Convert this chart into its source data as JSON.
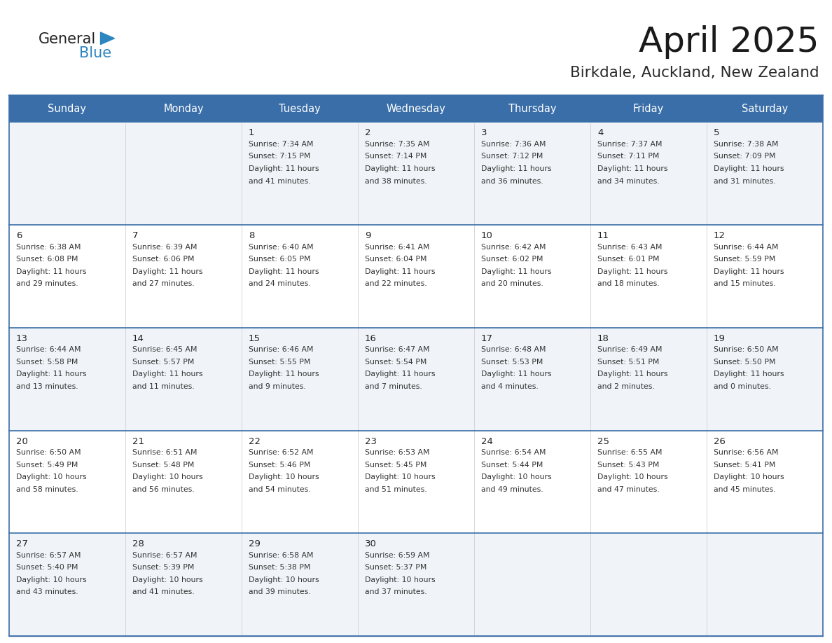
{
  "title": "April 2025",
  "subtitle": "Birkdale, Auckland, New Zealand",
  "header_bg": "#3a6ea8",
  "header_text": "#ffffff",
  "row_bg_odd": "#f0f4f8",
  "row_bg_even": "#ffffff",
  "day_number_color": "#222222",
  "cell_text_color": "#333333",
  "grid_line_color": "#3a6ea8",
  "logo_general_color": "#222222",
  "logo_blue_color": "#2e86c1",
  "logo_triangle_color": "#2e86c1",
  "days_of_week": [
    "Sunday",
    "Monday",
    "Tuesday",
    "Wednesday",
    "Thursday",
    "Friday",
    "Saturday"
  ],
  "calendar_data": [
    [
      {
        "day": "",
        "sunrise": "",
        "sunset": "",
        "daylight1": "",
        "daylight2": ""
      },
      {
        "day": "",
        "sunrise": "",
        "sunset": "",
        "daylight1": "",
        "daylight2": ""
      },
      {
        "day": "1",
        "sunrise": "Sunrise: 7:34 AM",
        "sunset": "Sunset: 7:15 PM",
        "daylight1": "Daylight: 11 hours",
        "daylight2": "and 41 minutes."
      },
      {
        "day": "2",
        "sunrise": "Sunrise: 7:35 AM",
        "sunset": "Sunset: 7:14 PM",
        "daylight1": "Daylight: 11 hours",
        "daylight2": "and 38 minutes."
      },
      {
        "day": "3",
        "sunrise": "Sunrise: 7:36 AM",
        "sunset": "Sunset: 7:12 PM",
        "daylight1": "Daylight: 11 hours",
        "daylight2": "and 36 minutes."
      },
      {
        "day": "4",
        "sunrise": "Sunrise: 7:37 AM",
        "sunset": "Sunset: 7:11 PM",
        "daylight1": "Daylight: 11 hours",
        "daylight2": "and 34 minutes."
      },
      {
        "day": "5",
        "sunrise": "Sunrise: 7:38 AM",
        "sunset": "Sunset: 7:09 PM",
        "daylight1": "Daylight: 11 hours",
        "daylight2": "and 31 minutes."
      }
    ],
    [
      {
        "day": "6",
        "sunrise": "Sunrise: 6:38 AM",
        "sunset": "Sunset: 6:08 PM",
        "daylight1": "Daylight: 11 hours",
        "daylight2": "and 29 minutes."
      },
      {
        "day": "7",
        "sunrise": "Sunrise: 6:39 AM",
        "sunset": "Sunset: 6:06 PM",
        "daylight1": "Daylight: 11 hours",
        "daylight2": "and 27 minutes."
      },
      {
        "day": "8",
        "sunrise": "Sunrise: 6:40 AM",
        "sunset": "Sunset: 6:05 PM",
        "daylight1": "Daylight: 11 hours",
        "daylight2": "and 24 minutes."
      },
      {
        "day": "9",
        "sunrise": "Sunrise: 6:41 AM",
        "sunset": "Sunset: 6:04 PM",
        "daylight1": "Daylight: 11 hours",
        "daylight2": "and 22 minutes."
      },
      {
        "day": "10",
        "sunrise": "Sunrise: 6:42 AM",
        "sunset": "Sunset: 6:02 PM",
        "daylight1": "Daylight: 11 hours",
        "daylight2": "and 20 minutes."
      },
      {
        "day": "11",
        "sunrise": "Sunrise: 6:43 AM",
        "sunset": "Sunset: 6:01 PM",
        "daylight1": "Daylight: 11 hours",
        "daylight2": "and 18 minutes."
      },
      {
        "day": "12",
        "sunrise": "Sunrise: 6:44 AM",
        "sunset": "Sunset: 5:59 PM",
        "daylight1": "Daylight: 11 hours",
        "daylight2": "and 15 minutes."
      }
    ],
    [
      {
        "day": "13",
        "sunrise": "Sunrise: 6:44 AM",
        "sunset": "Sunset: 5:58 PM",
        "daylight1": "Daylight: 11 hours",
        "daylight2": "and 13 minutes."
      },
      {
        "day": "14",
        "sunrise": "Sunrise: 6:45 AM",
        "sunset": "Sunset: 5:57 PM",
        "daylight1": "Daylight: 11 hours",
        "daylight2": "and 11 minutes."
      },
      {
        "day": "15",
        "sunrise": "Sunrise: 6:46 AM",
        "sunset": "Sunset: 5:55 PM",
        "daylight1": "Daylight: 11 hours",
        "daylight2": "and 9 minutes."
      },
      {
        "day": "16",
        "sunrise": "Sunrise: 6:47 AM",
        "sunset": "Sunset: 5:54 PM",
        "daylight1": "Daylight: 11 hours",
        "daylight2": "and 7 minutes."
      },
      {
        "day": "17",
        "sunrise": "Sunrise: 6:48 AM",
        "sunset": "Sunset: 5:53 PM",
        "daylight1": "Daylight: 11 hours",
        "daylight2": "and 4 minutes."
      },
      {
        "day": "18",
        "sunrise": "Sunrise: 6:49 AM",
        "sunset": "Sunset: 5:51 PM",
        "daylight1": "Daylight: 11 hours",
        "daylight2": "and 2 minutes."
      },
      {
        "day": "19",
        "sunrise": "Sunrise: 6:50 AM",
        "sunset": "Sunset: 5:50 PM",
        "daylight1": "Daylight: 11 hours",
        "daylight2": "and 0 minutes."
      }
    ],
    [
      {
        "day": "20",
        "sunrise": "Sunrise: 6:50 AM",
        "sunset": "Sunset: 5:49 PM",
        "daylight1": "Daylight: 10 hours",
        "daylight2": "and 58 minutes."
      },
      {
        "day": "21",
        "sunrise": "Sunrise: 6:51 AM",
        "sunset": "Sunset: 5:48 PM",
        "daylight1": "Daylight: 10 hours",
        "daylight2": "and 56 minutes."
      },
      {
        "day": "22",
        "sunrise": "Sunrise: 6:52 AM",
        "sunset": "Sunset: 5:46 PM",
        "daylight1": "Daylight: 10 hours",
        "daylight2": "and 54 minutes."
      },
      {
        "day": "23",
        "sunrise": "Sunrise: 6:53 AM",
        "sunset": "Sunset: 5:45 PM",
        "daylight1": "Daylight: 10 hours",
        "daylight2": "and 51 minutes."
      },
      {
        "day": "24",
        "sunrise": "Sunrise: 6:54 AM",
        "sunset": "Sunset: 5:44 PM",
        "daylight1": "Daylight: 10 hours",
        "daylight2": "and 49 minutes."
      },
      {
        "day": "25",
        "sunrise": "Sunrise: 6:55 AM",
        "sunset": "Sunset: 5:43 PM",
        "daylight1": "Daylight: 10 hours",
        "daylight2": "and 47 minutes."
      },
      {
        "day": "26",
        "sunrise": "Sunrise: 6:56 AM",
        "sunset": "Sunset: 5:41 PM",
        "daylight1": "Daylight: 10 hours",
        "daylight2": "and 45 minutes."
      }
    ],
    [
      {
        "day": "27",
        "sunrise": "Sunrise: 6:57 AM",
        "sunset": "Sunset: 5:40 PM",
        "daylight1": "Daylight: 10 hours",
        "daylight2": "and 43 minutes."
      },
      {
        "day": "28",
        "sunrise": "Sunrise: 6:57 AM",
        "sunset": "Sunset: 5:39 PM",
        "daylight1": "Daylight: 10 hours",
        "daylight2": "and 41 minutes."
      },
      {
        "day": "29",
        "sunrise": "Sunrise: 6:58 AM",
        "sunset": "Sunset: 5:38 PM",
        "daylight1": "Daylight: 10 hours",
        "daylight2": "and 39 minutes."
      },
      {
        "day": "30",
        "sunrise": "Sunrise: 6:59 AM",
        "sunset": "Sunset: 5:37 PM",
        "daylight1": "Daylight: 10 hours",
        "daylight2": "and 37 minutes."
      },
      {
        "day": "",
        "sunrise": "",
        "sunset": "",
        "daylight1": "",
        "daylight2": ""
      },
      {
        "day": "",
        "sunrise": "",
        "sunset": "",
        "daylight1": "",
        "daylight2": ""
      },
      {
        "day": "",
        "sunrise": "",
        "sunset": "",
        "daylight1": "",
        "daylight2": ""
      }
    ]
  ]
}
